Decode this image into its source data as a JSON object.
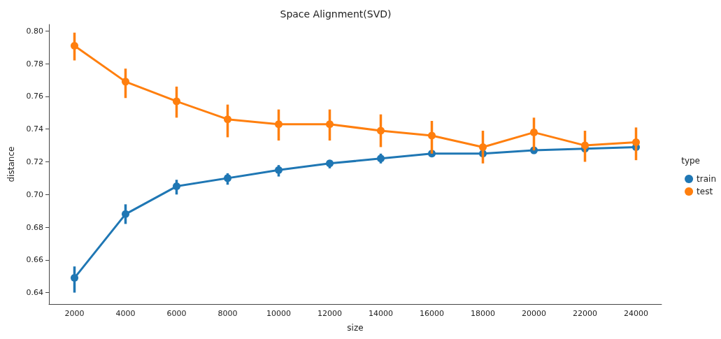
{
  "chart_data": {
    "type": "line",
    "title": "Space Alignment(SVD)",
    "xlabel": "size",
    "ylabel": "distance",
    "legend_title": "type",
    "legend": "right",
    "grid": false,
    "marker": "circle",
    "categories": [
      "2000",
      "4000",
      "6000",
      "8000",
      "10000",
      "12000",
      "14000",
      "16000",
      "18000",
      "20000",
      "22000",
      "24000"
    ],
    "ylim": [
      0.633,
      0.804
    ],
    "yticks": [
      0.64,
      0.66,
      0.68,
      {
        "value": 0.7,
        "label": "0.70"
      },
      0.72,
      0.74,
      0.76,
      0.78,
      {
        "value": 0.8,
        "label": "0.80"
      }
    ],
    "series": [
      {
        "name": "train",
        "color": "#1f77b4",
        "values": [
          0.649,
          0.688,
          0.705,
          0.71,
          0.715,
          0.719,
          0.722,
          0.725,
          0.725,
          0.727,
          0.728,
          0.729
        ],
        "errors": [
          [
            0.64,
            0.656
          ],
          [
            0.682,
            0.694
          ],
          [
            0.7,
            0.709
          ],
          [
            0.706,
            0.713
          ],
          [
            0.711,
            0.718
          ],
          [
            0.716,
            0.721
          ],
          [
            0.719,
            0.725
          ],
          [
            0.723,
            0.727
          ],
          null,
          [
            0.725,
            0.729
          ],
          null,
          null
        ]
      },
      {
        "name": "test",
        "color": "#ff7f0e",
        "values": [
          0.791,
          0.769,
          0.757,
          0.746,
          0.743,
          0.743,
          0.739,
          0.736,
          0.729,
          0.738,
          0.73,
          0.732
        ],
        "errors": [
          [
            0.782,
            0.799
          ],
          [
            0.759,
            0.777
          ],
          [
            0.747,
            0.766
          ],
          [
            0.735,
            0.755
          ],
          [
            0.733,
            0.752
          ],
          [
            0.733,
            0.752
          ],
          [
            0.729,
            0.749
          ],
          [
            0.725,
            0.745
          ],
          [
            0.719,
            0.739
          ],
          [
            0.727,
            0.747
          ],
          [
            0.72,
            0.739
          ],
          [
            0.721,
            0.741
          ]
        ]
      }
    ]
  }
}
